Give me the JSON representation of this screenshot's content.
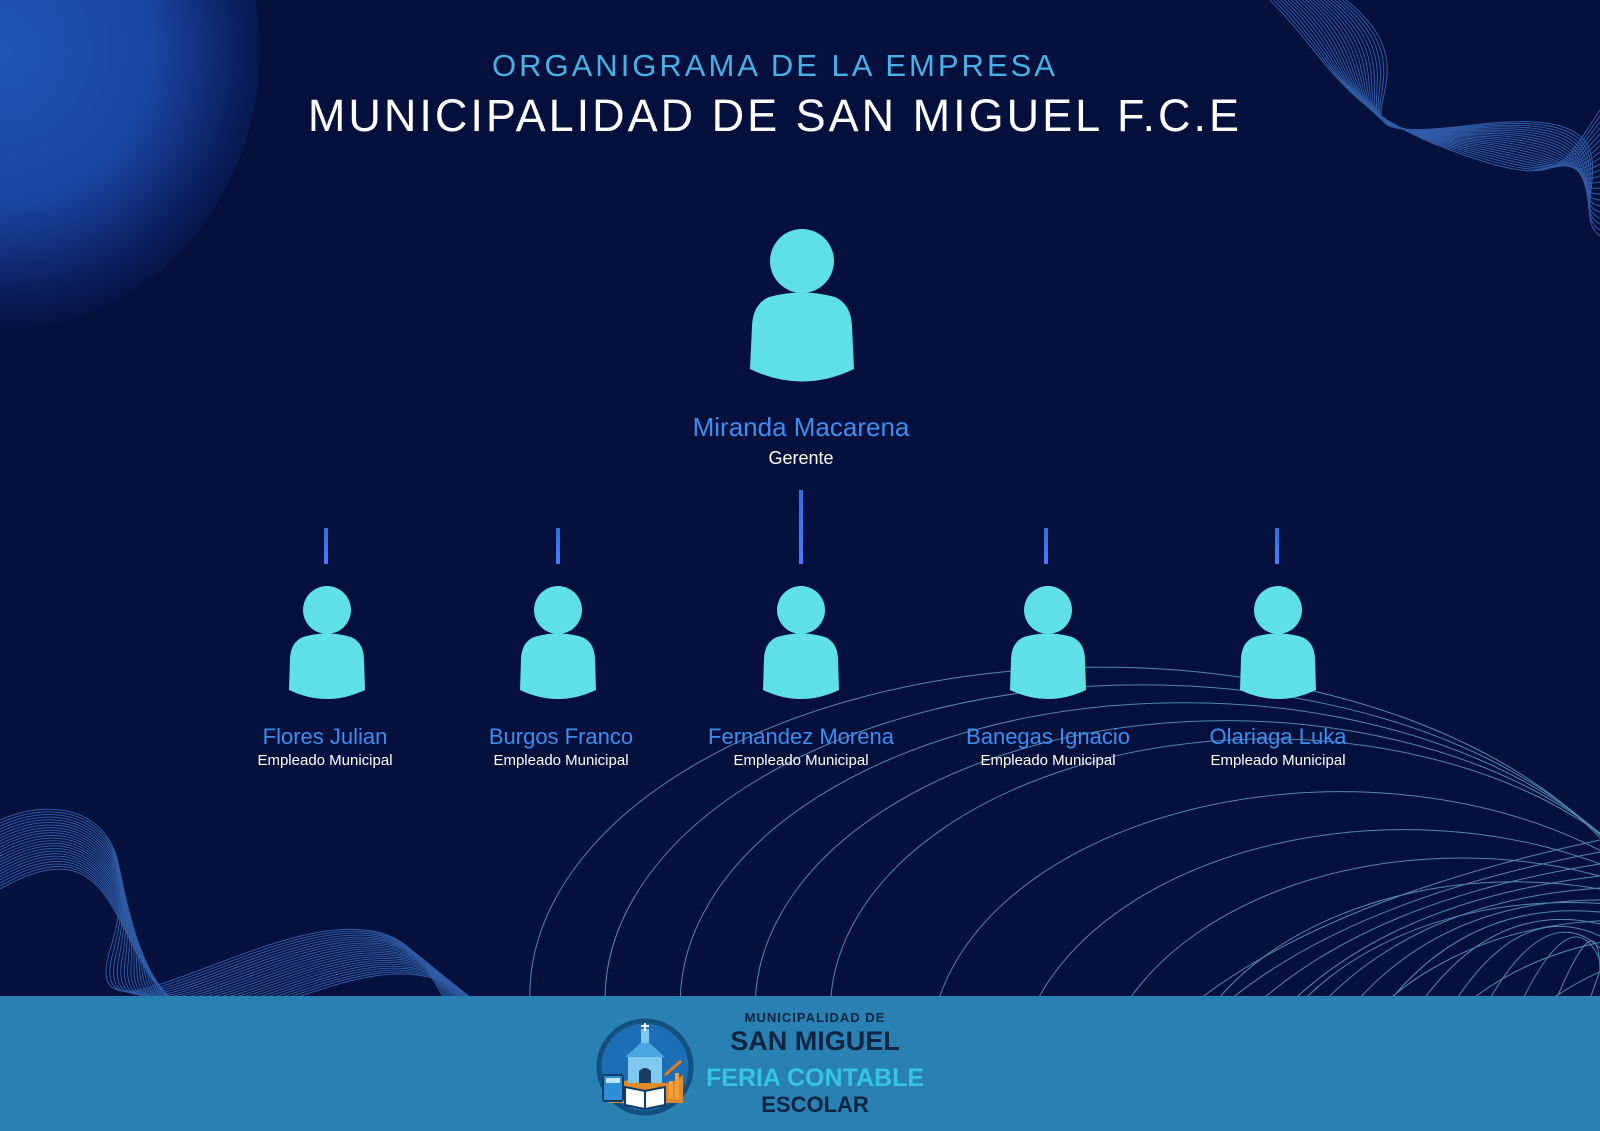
{
  "header": {
    "subtitle": "ORGANIGRAMA DE LA EMPRESA",
    "title": "MUNICIPALIDAD DE SAN MIGUEL F.C.E"
  },
  "org": {
    "manager": {
      "name": "Miranda Macarena",
      "role": "Gerente"
    },
    "employees": [
      {
        "name": "Flores Julian",
        "role": "Empleado Municipal"
      },
      {
        "name": "Burgos Franco",
        "role": "Empleado Municipal"
      },
      {
        "name": "Fernandez Morena",
        "role": "Empleado Municipal"
      },
      {
        "name": "Banegas Ignacio",
        "role": "Empleado Municipal"
      },
      {
        "name": "Olariaga Luka",
        "role": "Empleado Municipal"
      }
    ]
  },
  "footer": {
    "logo_line1": "MUNICIPALIDAD DE",
    "logo_line2": "SAN MIGUEL",
    "logo_line3": "FERIA CONTABLE",
    "logo_line4": "ESCOLAR"
  },
  "colors": {
    "background": "#05103d",
    "accent": "#4ab0e6",
    "person_icon": "#5fe0e6",
    "name_text": "#3d8eef",
    "band": "#2880b3"
  },
  "icons": [
    "person-icon",
    "logo-emblem-icon"
  ]
}
